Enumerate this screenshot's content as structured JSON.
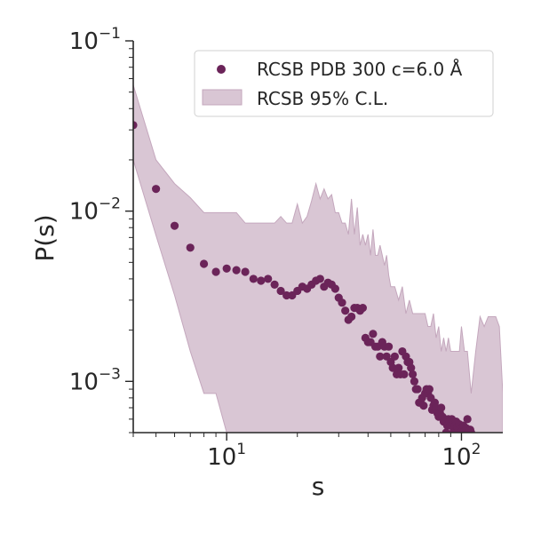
{
  "chart_data": {
    "type": "scatter",
    "title": "",
    "xlabel": "s",
    "ylabel": "P(s)",
    "xscale": "log",
    "yscale": "log",
    "xlim": [
      4.0,
      150.0
    ],
    "ylim": [
      0.0005,
      0.1
    ],
    "grid": false,
    "legend_placement": "top-right",
    "x_ticks": [
      {
        "value": 10,
        "base": "10",
        "exp": "1"
      },
      {
        "value": 100,
        "base": "10",
        "exp": "2"
      }
    ],
    "y_ticks": [
      {
        "value": 0.1,
        "base": "10",
        "exp": "−1"
      },
      {
        "value": 0.01,
        "base": "10",
        "exp": "−2"
      },
      {
        "value": 0.001,
        "base": "10",
        "exp": "−3"
      }
    ],
    "colors": {
      "points": "#6b2459",
      "band_fill": "#d9c6d4",
      "band_edge": "#c4a7bd",
      "axis": "#262626"
    },
    "series": [
      {
        "name": "RCSB PDB 300 c=6.0 Å",
        "kind": "scatter",
        "x": [
          4,
          5,
          6,
          7,
          8,
          9,
          10,
          11,
          12,
          13,
          14,
          15,
          16,
          17,
          18,
          19,
          20,
          21,
          22,
          23,
          24,
          25,
          26,
          27,
          28,
          29,
          30,
          31,
          32,
          33,
          34,
          35,
          36,
          37,
          38,
          39,
          40,
          41,
          42,
          43,
          44,
          45,
          46,
          47,
          48,
          49,
          50,
          51,
          52,
          53,
          54,
          55,
          56,
          57,
          58,
          59,
          60,
          61,
          62,
          63,
          64,
          65,
          66,
          67,
          68,
          69,
          70,
          71,
          72,
          73,
          74,
          75,
          76,
          77,
          78,
          79,
          80,
          81,
          82,
          83,
          84,
          85,
          86,
          87,
          88,
          89,
          90,
          91,
          92,
          93,
          94,
          95,
          96,
          97,
          98,
          99,
          100,
          101,
          102,
          103,
          104,
          105,
          106,
          107,
          108,
          109,
          110
        ],
        "y": [
          0.032,
          0.0135,
          0.0082,
          0.0061,
          0.0049,
          0.0044,
          0.0046,
          0.0045,
          0.0044,
          0.004,
          0.0039,
          0.004,
          0.0037,
          0.0034,
          0.0032,
          0.0032,
          0.0034,
          0.0036,
          0.0035,
          0.0037,
          0.0039,
          0.004,
          0.0036,
          0.0038,
          0.0037,
          0.0035,
          0.0031,
          0.0029,
          0.0026,
          0.0023,
          0.0024,
          0.0027,
          0.0027,
          0.0026,
          0.0027,
          0.0018,
          0.0017,
          0.0017,
          0.0019,
          0.0016,
          0.0016,
          0.0014,
          0.0017,
          0.0016,
          0.0014,
          0.0016,
          0.0013,
          0.0012,
          0.0014,
          0.0011,
          0.0012,
          0.0011,
          0.0015,
          0.0011,
          0.0014,
          0.0013,
          0.0013,
          0.0012,
          0.0011,
          0.001,
          0.0009,
          0.0009,
          0.00075,
          0.00075,
          0.0008,
          0.00072,
          0.00085,
          0.0009,
          0.00085,
          0.0009,
          0.0008,
          0.00068,
          0.00072,
          0.00075,
          0.0007,
          0.00065,
          0.00062,
          0.00065,
          0.0007,
          0.00062,
          0.00058,
          0.0006,
          0.0005,
          0.00055,
          0.0006,
          0.00058,
          0.00055,
          0.0006,
          0.0005,
          0.00052,
          0.00055,
          0.00058,
          0.00054,
          0.00052,
          0.00056,
          0.0005,
          0.00052,
          0.00054,
          0.00055,
          0.00051,
          0.0005,
          0.00053,
          0.0006,
          0.0005,
          0.0005,
          0.00052,
          0.0005
        ]
      },
      {
        "name": "RCSB 95% C.L.",
        "kind": "band",
        "x": [
          4,
          5,
          6,
          7,
          8,
          9,
          10,
          11,
          12,
          13,
          14,
          15,
          16,
          17,
          18,
          19,
          20,
          21,
          22,
          23,
          24,
          25,
          26,
          27,
          28,
          29,
          30,
          31,
          32,
          33,
          34,
          35,
          36,
          37,
          38,
          39,
          40,
          41,
          42,
          43,
          44,
          45,
          46,
          47,
          48,
          49,
          50,
          52,
          54,
          56,
          58,
          60,
          62,
          64,
          66,
          68,
          70,
          72,
          74,
          76,
          78,
          80,
          82,
          84,
          86,
          88,
          90,
          92,
          94,
          96,
          98,
          100,
          103,
          106,
          110,
          115,
          120,
          125,
          130,
          135,
          140,
          145,
          150
        ],
        "upper": [
          0.055,
          0.02,
          0.0145,
          0.012,
          0.0098,
          0.0098,
          0.0098,
          0.0098,
          0.0085,
          0.0085,
          0.0085,
          0.0085,
          0.0085,
          0.0093,
          0.0085,
          0.0085,
          0.011,
          0.0085,
          0.0093,
          0.0115,
          0.0145,
          0.0118,
          0.0135,
          0.0118,
          0.0125,
          0.0098,
          0.0098,
          0.0085,
          0.0085,
          0.0073,
          0.0118,
          0.0073,
          0.0105,
          0.0063,
          0.0073,
          0.0063,
          0.0073,
          0.0055,
          0.0078,
          0.0055,
          0.0055,
          0.0063,
          0.0055,
          0.0048,
          0.0055,
          0.0042,
          0.0036,
          0.0036,
          0.003,
          0.0036,
          0.0025,
          0.003,
          0.0025,
          0.0025,
          0.0025,
          0.0025,
          0.0025,
          0.0021,
          0.0021,
          0.0025,
          0.0018,
          0.0021,
          0.0015,
          0.0018,
          0.0015,
          0.0018,
          0.0015,
          0.0015,
          0.0015,
          0.0015,
          0.0015,
          0.0021,
          0.0015,
          0.0015,
          0.00085,
          0.0015,
          0.0024,
          0.0021,
          0.0024,
          0.0024,
          0.0024,
          0.0021,
          0.00085
        ],
        "lower": [
          0.02,
          0.0072,
          0.0032,
          0.0015,
          0.00085,
          0.00085,
          0.0005,
          0.0005,
          0.0005,
          0.0005,
          0.0005,
          0.0005,
          0.0005,
          0.0005,
          0.0005,
          0.0005,
          0.0005,
          0.0005,
          0.0005,
          0.0005,
          0.0005,
          0.0005,
          0.0005,
          0.0005,
          0.0005,
          0.0005,
          0.0005,
          0.0005,
          0.0005,
          0.0005,
          0.0005,
          0.0005,
          0.0005,
          0.0005,
          0.0005,
          0.0005,
          0.0005,
          0.0005,
          0.0005,
          0.0005,
          0.0005,
          0.0005,
          0.0005,
          0.0005,
          0.0005,
          0.0005,
          0.0005,
          0.0005,
          0.0005,
          0.0005,
          0.0005,
          0.0005,
          0.0005,
          0.0005,
          0.0005,
          0.0005,
          0.0005,
          0.0005,
          0.0005,
          0.0005,
          0.0005,
          0.0005,
          0.0005,
          0.0005,
          0.0005,
          0.0005,
          0.0005,
          0.0005,
          0.0005,
          0.0005,
          0.0005,
          0.0005,
          0.0005,
          0.0005,
          0.0005,
          0.0005,
          0.0005,
          0.0005,
          0.0005,
          0.0005,
          0.0005,
          0.0005,
          0.0005
        ]
      }
    ]
  }
}
